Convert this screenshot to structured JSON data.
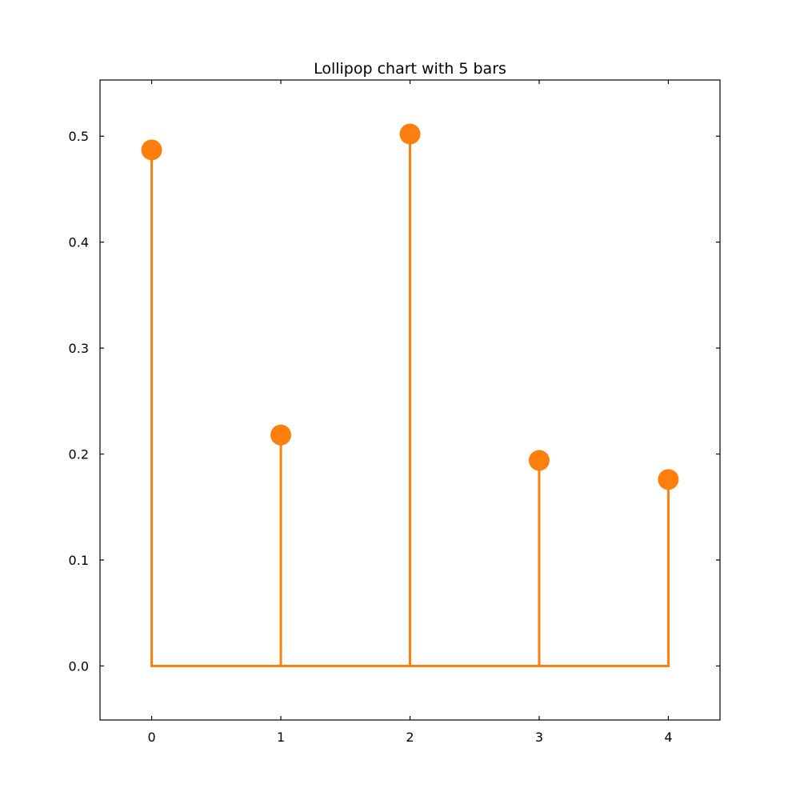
{
  "chart_data": {
    "type": "lollipop",
    "title": "Lollipop chart with 5 bars",
    "xlabel": "",
    "ylabel": "",
    "x": [
      0,
      1,
      2,
      3,
      4
    ],
    "values": [
      0.487,
      0.218,
      0.502,
      0.194,
      0.176
    ],
    "baseline": 0.0,
    "xlim": [
      -0.4,
      4.4
    ],
    "ylim": [
      -0.051,
      0.553
    ],
    "xticks": [
      0,
      1,
      2,
      3,
      4
    ],
    "xtick_labels": [
      "0",
      "1",
      "2",
      "3",
      "4"
    ],
    "yticks": [
      0.0,
      0.1,
      0.2,
      0.3,
      0.4,
      0.5
    ],
    "ytick_labels": [
      "0.0",
      "0.1",
      "0.2",
      "0.3",
      "0.4",
      "0.5"
    ],
    "grid": false,
    "ticks_direction": "in",
    "ticks_mirrored": true,
    "color": "#ff7f0e"
  }
}
